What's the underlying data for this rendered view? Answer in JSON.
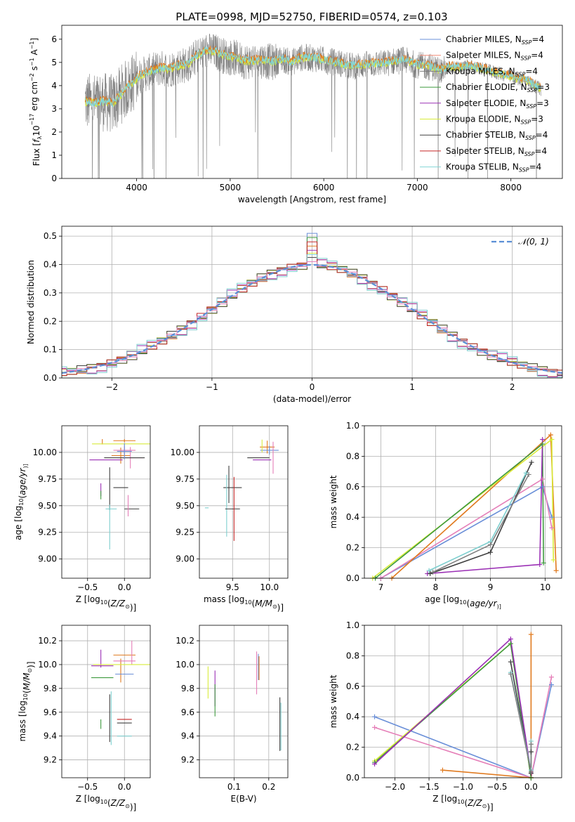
{
  "title": "PLATE=0998, MJD=52750, FIBERID=0574, z=0.103",
  "colors": {
    "Chabrier MILES": "#6a8fd8",
    "Salpeter MILES": "#f28a76",
    "Kroupa MILES": "#7a7a7a",
    "Chabrier ELODIE": "#3f9a3f",
    "Salpeter ELODIE": "#9b30b5",
    "Kroupa ELODIE": "#d8ec3a",
    "Chabrier STELIB": "#404040",
    "Salpeter STELIB": "#c62828",
    "Kroupa STELIB": "#83d6d6",
    "orange": "#e07a1f",
    "pink": "#e57fb8",
    "gray": "#808080",
    "cyan": "#7ecfcf"
  },
  "chart_data": [
    {
      "id": "spectrum",
      "type": "line",
      "title": "PLATE=0998, MJD=52750, FIBERID=0574, z=0.103",
      "xlabel": "wavelength [Angstrom, rest frame]",
      "ylabel_parts": [
        "Flux [",
        "f",
        "λ",
        "10",
        "−17",
        " erg cm",
        "−2",
        " s",
        "−1",
        " A",
        "−1",
        "]"
      ],
      "xlim": [
        3200,
        8550
      ],
      "ylim": [
        0,
        6.6
      ],
      "xticks": [
        4000,
        5000,
        6000,
        7000,
        8000
      ],
      "yticks": [
        0,
        1,
        2,
        3,
        4,
        5,
        6
      ],
      "continuum": {
        "x": [
          3450,
          3550,
          3650,
          3750,
          3850,
          3950,
          4050,
          4150,
          4250,
          4350,
          4450,
          4550,
          4650,
          4750,
          4850,
          4950,
          5050,
          5150,
          5250,
          5350,
          5450,
          5550,
          5650,
          5750,
          5850,
          5950,
          6050,
          6150,
          6250,
          6350,
          6450,
          6550,
          6650,
          6750,
          6850,
          6950,
          7050,
          7150,
          7250,
          7350,
          7450,
          7550,
          7650,
          7750,
          7850,
          7950,
          8050,
          8150,
          8250,
          8320
        ],
        "y": [
          3.3,
          3.25,
          3.3,
          3.2,
          3.7,
          4.1,
          4.45,
          4.6,
          4.75,
          4.7,
          4.85,
          4.9,
          5.3,
          5.5,
          5.45,
          5.25,
          5.2,
          5.05,
          5.05,
          5.1,
          5.0,
          5.15,
          5.0,
          5.2,
          5.2,
          5.15,
          5.05,
          5.0,
          4.85,
          4.85,
          4.9,
          4.95,
          4.95,
          5.05,
          5.1,
          4.95,
          4.85,
          4.8,
          4.65,
          4.8,
          4.75,
          4.85,
          4.75,
          4.65,
          4.55,
          4.45,
          4.3,
          4.25,
          4.0,
          3.85
        ]
      },
      "legend": [
        {
          "label": "Chabrier MILES",
          "sub": "SSP",
          "n": "4"
        },
        {
          "label": "Salpeter MILES",
          "sub": "SSP",
          "n": "4"
        },
        {
          "label": "Kroupa MILES",
          "sub": "SSP",
          "n": "4"
        },
        {
          "label": "Chabrier ELODIE",
          "sub": "SSP",
          "n": "3"
        },
        {
          "label": "Salpeter ELODIE",
          "sub": "SSP",
          "n": "3"
        },
        {
          "label": "Kroupa ELODIE",
          "sub": "SSP",
          "n": "3"
        },
        {
          "label": "Chabrier STELIB",
          "sub": "SSP",
          "n": "4"
        },
        {
          "label": "Salpeter STELIB",
          "sub": "SSP",
          "n": "4"
        },
        {
          "label": "Kroupa STELIB",
          "sub": "SSP",
          "n": "4"
        }
      ],
      "legend_loc": "right"
    },
    {
      "id": "residuals",
      "type": "line",
      "xlabel": "(data-model)/error",
      "ylabel": "Normed distribution",
      "xlim": [
        -2.5,
        2.5
      ],
      "ylim": [
        0,
        0.535
      ],
      "xticks": [
        -2,
        -1,
        0,
        1,
        2
      ],
      "yticks": [
        0.0,
        0.1,
        0.2,
        0.3,
        0.4,
        0.5
      ],
      "grid": true,
      "legend": "𝒩(0, 1)",
      "legend_loc": "top-right",
      "bin_width": 0.1,
      "hist_offsets": [
        0.0,
        0.02,
        -0.015,
        0.01,
        -0.02,
        0.015,
        -0.01,
        0.025,
        -0.005
      ],
      "peak_bins": [
        0.51,
        0.47,
        0.45
      ]
    },
    {
      "id": "age-Z",
      "type": "scatter",
      "xlabel_parts": [
        "Z [log",
        "10",
        "(",
        "Z/Z",
        "⊙",
        ")]"
      ],
      "ylabel_parts": [
        "age  [log",
        "10",
        "(",
        "age/yr",
        ")]"
      ],
      "xlim": [
        -0.85,
        0.35
      ],
      "ylim": [
        8.82,
        10.25
      ],
      "xticks": [
        -0.5,
        0.0
      ],
      "yticks": [
        9.0,
        9.25,
        9.5,
        9.75,
        10.0
      ],
      "grid": true,
      "points": [
        {
          "x": -0.3,
          "y": 10.1,
          "ex": 0.0,
          "ey": 0.05,
          "c": "orange"
        },
        {
          "x": 0.0,
          "y": 10.11,
          "ex": 0.3,
          "ey": 0.03,
          "c": "orange"
        },
        {
          "x": -0.05,
          "y": 9.97,
          "ex": 0.25,
          "ey": 0.15,
          "c": "orange"
        },
        {
          "x": 0.0,
          "y": 10.08,
          "ex": 0.88,
          "ey": 0.0,
          "c": "Kroupa ELODIE"
        },
        {
          "x": 0.0,
          "y": 10.02,
          "ex": 0.3,
          "ey": 0.08,
          "c": "pink"
        },
        {
          "x": 0.08,
          "y": 9.95,
          "ex": 0.35,
          "ey": 0.2,
          "c": "pink"
        },
        {
          "x": 0.0,
          "y": 9.95,
          "ex": 0.55,
          "ey": 0.0,
          "c": "Chabrier STELIB"
        },
        {
          "x": -0.25,
          "y": 9.93,
          "ex": 0.45,
          "ey": 0.0,
          "c": "Salpeter ELODIE"
        },
        {
          "x": 0.0,
          "y": 10.01,
          "ex": 0.2,
          "ey": 0.15,
          "c": "Chabrier MILES"
        },
        {
          "x": -0.32,
          "y": 9.65,
          "ex": 0.0,
          "ey": 0.12,
          "c": "Salpeter ELODIE"
        },
        {
          "x": -0.32,
          "y": 9.6,
          "ex": 0.0,
          "ey": 0.08,
          "c": "Chabrier ELODIE"
        },
        {
          "x": -0.05,
          "y": 9.67,
          "ex": 0.2,
          "ey": 0.0,
          "c": "Chabrier STELIB"
        },
        {
          "x": -0.2,
          "y": 9.66,
          "ex": 0.0,
          "ey": 0.4,
          "c": "Chabrier STELIB"
        },
        {
          "x": 0.1,
          "y": 9.47,
          "ex": 0.2,
          "ey": 0.0,
          "c": "Chabrier STELIB"
        },
        {
          "x": -0.2,
          "y": 9.3,
          "ex": 0.0,
          "ey": 0.42,
          "c": "cyan"
        },
        {
          "x": -0.18,
          "y": 9.47,
          "ex": 0.15,
          "ey": 0.0,
          "c": "cyan"
        },
        {
          "x": 0.05,
          "y": 9.5,
          "ex": 0.0,
          "ey": 0.2,
          "c": "pink"
        }
      ]
    },
    {
      "id": "age-mass",
      "type": "scatter",
      "xlabel_parts": [
        "mass [log",
        "10",
        "(",
        "M/M",
        "⊙",
        ")]"
      ],
      "xlim": [
        9.05,
        10.25
      ],
      "ylim": [
        8.82,
        10.25
      ],
      "xticks": [
        9.5,
        10.0
      ],
      "yticks": [
        9.0,
        9.25,
        9.5,
        9.75,
        10.0
      ],
      "grid": true,
      "points": [
        {
          "x": 9.97,
          "y": 10.05,
          "ex": 0.2,
          "ey": 0.12,
          "c": "orange"
        },
        {
          "x": 10.0,
          "y": 10.02,
          "ex": 0.25,
          "ey": 0.08,
          "c": "Chabrier MILES"
        },
        {
          "x": 9.9,
          "y": 10.06,
          "ex": 0.0,
          "ey": 0.12,
          "c": "Kroupa ELODIE"
        },
        {
          "x": 9.85,
          "y": 9.95,
          "ex": 0.3,
          "ey": 0.0,
          "c": "Chabrier STELIB"
        },
        {
          "x": 9.9,
          "y": 9.93,
          "ex": 0.25,
          "ey": 0.0,
          "c": "Salpeter ELODIE"
        },
        {
          "x": 10.05,
          "y": 9.95,
          "ex": 0.0,
          "ey": 0.3,
          "c": "pink"
        },
        {
          "x": 9.45,
          "y": 9.7,
          "ex": 0.0,
          "ey": 0.35,
          "c": "Chabrier STELIB"
        },
        {
          "x": 9.5,
          "y": 9.67,
          "ex": 0.25,
          "ey": 0.0,
          "c": "Chabrier STELIB"
        },
        {
          "x": 9.42,
          "y": 9.5,
          "ex": 0.0,
          "ey": 0.58,
          "c": "cyan"
        },
        {
          "x": 9.5,
          "y": 9.47,
          "ex": 0.2,
          "ey": 0.0,
          "c": "Chabrier STELIB"
        },
        {
          "x": 9.52,
          "y": 9.47,
          "ex": 0.0,
          "ey": 0.6,
          "c": "Salpeter STELIB"
        },
        {
          "x": 9.15,
          "y": 9.48,
          "ex": 0.05,
          "ey": 0.0,
          "c": "cyan"
        }
      ]
    },
    {
      "id": "weight-age",
      "type": "line",
      "xlabel_parts": [
        "age  [log",
        "10",
        "(",
        "age/yr",
        ")]"
      ],
      "ylabel": "mass weight",
      "xlim": [
        6.7,
        10.3
      ],
      "ylim": [
        0,
        1.0
      ],
      "xticks": [
        7,
        8,
        9,
        10
      ],
      "yticks": [
        0.0,
        0.2,
        0.4,
        0.6,
        0.8,
        1.0
      ],
      "grid": true,
      "series": [
        {
          "c": "Chabrier MILES",
          "x": [
            7.0,
            9.95,
            10.12
          ],
          "y": [
            0.0,
            0.6,
            0.4
          ]
        },
        {
          "c": "pink",
          "x": [
            7.0,
            9.95,
            10.12
          ],
          "y": [
            0.0,
            0.65,
            0.33
          ]
        },
        {
          "c": "orange",
          "x": [
            7.2,
            10.1,
            10.2
          ],
          "y": [
            0.0,
            0.94,
            0.05
          ]
        },
        {
          "c": "Kroupa ELODIE",
          "x": [
            6.85,
            10.12,
            10.15
          ],
          "y": [
            0.0,
            0.91,
            0.12
          ]
        },
        {
          "c": "Chabrier ELODIE",
          "x": [
            6.9,
            9.95,
            9.97
          ],
          "y": [
            0.0,
            0.88,
            0.1
          ]
        },
        {
          "c": "Salpeter ELODIE",
          "x": [
            7.85,
            9.9,
            9.95
          ],
          "y": [
            0.03,
            0.09,
            0.91
          ]
        },
        {
          "c": "Chabrier STELIB",
          "x": [
            7.9,
            9.0,
            9.75
          ],
          "y": [
            0.03,
            0.17,
            0.76
          ]
        },
        {
          "c": "cyan",
          "x": [
            7.88,
            9.0,
            9.65
          ],
          "y": [
            0.05,
            0.24,
            0.69
          ]
        },
        {
          "c": "gray",
          "x": [
            7.95,
            9.0,
            9.7
          ],
          "y": [
            0.04,
            0.22,
            0.68
          ]
        }
      ]
    },
    {
      "id": "mass-Z",
      "type": "scatter",
      "xlabel_parts": [
        "Z [log",
        "10",
        "(",
        "Z/Z",
        "⊙",
        ")]"
      ],
      "ylabel_parts": [
        "mass [log",
        "10",
        "(",
        "M/M",
        "⊙",
        ")]"
      ],
      "xlim": [
        -0.85,
        0.35
      ],
      "ylim": [
        9.05,
        10.33
      ],
      "xticks": [
        -0.5,
        0.0
      ],
      "yticks": [
        9.2,
        9.4,
        9.6,
        9.8,
        10.0,
        10.2
      ],
      "grid": true,
      "points": [
        {
          "x": -0.32,
          "y": 10.05,
          "ex": 0.0,
          "ey": 0.15,
          "c": "Salpeter ELODIE"
        },
        {
          "x": 0.0,
          "y": 10.08,
          "ex": 0.3,
          "ey": 0.0,
          "c": "orange"
        },
        {
          "x": -0.05,
          "y": 9.95,
          "ex": 0.0,
          "ey": 0.2,
          "c": "orange"
        },
        {
          "x": 0.0,
          "y": 10.03,
          "ex": 0.3,
          "ey": 0.0,
          "c": "pink"
        },
        {
          "x": 0.1,
          "y": 10.1,
          "ex": 0.0,
          "ey": 0.2,
          "c": "pink"
        },
        {
          "x": 0.0,
          "y": 10.0,
          "ex": 0.85,
          "ey": 0.0,
          "c": "Kroupa ELODIE"
        },
        {
          "x": -0.3,
          "y": 9.99,
          "ex": 0.3,
          "ey": 0.0,
          "c": "Salpeter ELODIE"
        },
        {
          "x": 0.0,
          "y": 9.92,
          "ex": 0.25,
          "ey": 0.0,
          "c": "Chabrier MILES"
        },
        {
          "x": -0.3,
          "y": 9.89,
          "ex": 0.3,
          "ey": 0.0,
          "c": "Chabrier ELODIE"
        },
        {
          "x": -0.32,
          "y": 9.5,
          "ex": 0.0,
          "ey": 0.08,
          "c": "Chabrier ELODIE"
        },
        {
          "x": 0.0,
          "y": 9.54,
          "ex": 0.2,
          "ey": 0.0,
          "c": "Salpeter STELIB"
        },
        {
          "x": 0.0,
          "y": 9.51,
          "ex": 0.2,
          "ey": 0.0,
          "c": "Chabrier STELIB"
        },
        {
          "x": -0.2,
          "y": 9.55,
          "ex": 0.0,
          "ey": 0.4,
          "c": "Chabrier STELIB"
        },
        {
          "x": -0.18,
          "y": 9.55,
          "ex": 0.0,
          "ey": 0.45,
          "c": "cyan"
        },
        {
          "x": 0.0,
          "y": 9.4,
          "ex": 0.2,
          "ey": 0.0,
          "c": "cyan"
        }
      ]
    },
    {
      "id": "mass-EBV",
      "type": "scatter",
      "xlabel": "E(B-V)",
      "xlim": [
        0.0,
        0.255
      ],
      "ylim": [
        9.05,
        10.33
      ],
      "xticks": [
        0.1,
        0.2
      ],
      "yticks": [
        9.2,
        9.4,
        9.6,
        9.8,
        10.0,
        10.2
      ],
      "grid": true,
      "points": [
        {
          "x": 0.025,
          "y": 9.85,
          "ex": 0.0,
          "ey": 0.27,
          "c": "Kroupa ELODIE"
        },
        {
          "x": 0.045,
          "y": 9.8,
          "ex": 0.0,
          "ey": 0.3,
          "c": "Salpeter ELODIE"
        },
        {
          "x": 0.045,
          "y": 9.7,
          "ex": 0.0,
          "ey": 0.27,
          "c": "Chabrier ELODIE"
        },
        {
          "x": 0.165,
          "y": 9.93,
          "ex": 0.0,
          "ey": 0.36,
          "c": "pink"
        },
        {
          "x": 0.17,
          "y": 9.98,
          "ex": 0.0,
          "ey": 0.22,
          "c": "Chabrier MILES"
        },
        {
          "x": 0.172,
          "y": 9.97,
          "ex": 0.0,
          "ey": 0.2,
          "c": "orange"
        },
        {
          "x": 0.232,
          "y": 9.5,
          "ex": 0.0,
          "ey": 0.45,
          "c": "Chabrier STELIB"
        },
        {
          "x": 0.235,
          "y": 9.48,
          "ex": 0.0,
          "ey": 0.4,
          "c": "cyan"
        }
      ]
    },
    {
      "id": "weight-Z",
      "type": "line",
      "xlabel_parts": [
        "Z [log",
        "10",
        "(",
        "Z/Z",
        "⊙",
        ")]"
      ],
      "ylabel": "mass weight",
      "xlim": [
        -2.45,
        0.45
      ],
      "ylim": [
        0,
        1.0
      ],
      "xticks": [
        -2.0,
        -1.5,
        -1.0,
        -0.5,
        0.0
      ],
      "yticks": [
        0.0,
        0.2,
        0.4,
        0.6,
        0.8,
        1.0
      ],
      "grid": true,
      "series": [
        {
          "c": "Chabrier MILES",
          "x": [
            -2.3,
            0.0,
            0.3
          ],
          "y": [
            0.4,
            0.0,
            0.61
          ]
        },
        {
          "c": "pink",
          "x": [
            -2.3,
            0.0,
            0.3
          ],
          "y": [
            0.33,
            0.0,
            0.66
          ]
        },
        {
          "c": "orange",
          "x": [
            -1.3,
            0.0,
            0.0
          ],
          "y": [
            0.05,
            0.0,
            0.94
          ]
        },
        {
          "c": "Kroupa ELODIE",
          "x": [
            -2.3,
            -0.3,
            0.0
          ],
          "y": [
            0.11,
            0.88,
            0.0
          ]
        },
        {
          "c": "Chabrier ELODIE",
          "x": [
            -2.3,
            -0.3,
            0.0
          ],
          "y": [
            0.1,
            0.88,
            0.0
          ]
        },
        {
          "c": "Salpeter ELODIE",
          "x": [
            -2.3,
            -0.3,
            0.0
          ],
          "y": [
            0.09,
            0.91,
            0.03
          ]
        },
        {
          "c": "Chabrier STELIB",
          "x": [
            -0.3,
            0.0,
            0.0
          ],
          "y": [
            0.76,
            0.03,
            0.17
          ]
        },
        {
          "c": "cyan",
          "x": [
            -0.3,
            0.0,
            0.0
          ],
          "y": [
            0.69,
            0.05,
            0.24
          ]
        },
        {
          "c": "gray",
          "x": [
            -0.3,
            0.0,
            0.0
          ],
          "y": [
            0.68,
            0.04,
            0.22
          ]
        }
      ]
    }
  ]
}
